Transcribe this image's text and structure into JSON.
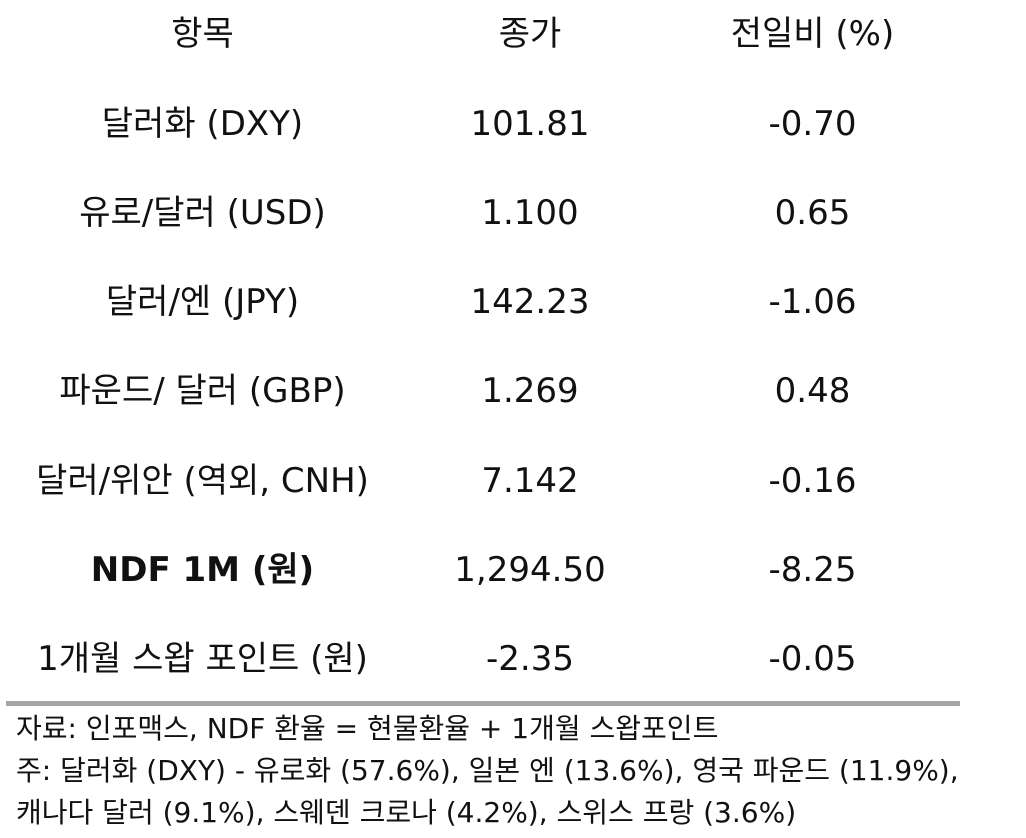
{
  "table": {
    "headers": [
      "항목",
      "종가",
      "전일비 (%)"
    ],
    "rows": [
      {
        "item": "달러화 (DXY)",
        "close": "101.81",
        "change": "-0.70",
        "bold": false
      },
      {
        "item": "유로/달러 (USD)",
        "close": "1.100",
        "change": "0.65",
        "bold": false
      },
      {
        "item": "달러/엔 (JPY)",
        "close": "142.23",
        "change": "-1.06",
        "bold": false
      },
      {
        "item": "파운드/ 달러 (GBP)",
        "close": "1.269",
        "change": "0.48",
        "bold": false
      },
      {
        "item": "달러/위안 (역외, CNH)",
        "close": "7.142",
        "change": "-0.16",
        "bold": false
      },
      {
        "item": "NDF 1M (원)",
        "close": "1,294.50",
        "change": "-8.25",
        "bold": true
      },
      {
        "item": "1개월 스왑 포인트 (원)",
        "close": "-2.35",
        "change": "-0.05",
        "bold": false
      }
    ]
  },
  "notes": {
    "source": "자료: 인포맥스, NDF 환율 = 현물환율 + 1개월 스왑포인트",
    "weights_line1": "주: 달러화 (DXY) - 유로화 (57.6%), 일본 엔 (13.6%), 영국 파운드 (11.9%),",
    "weights_line2": "캐나다 달러 (9.1%), 스웨덴 크로나 (4.2%), 스위스 프랑 (3.6%)"
  },
  "colors": {
    "text": "#111111",
    "divider": "#a6a6a6",
    "background": "#ffffff"
  }
}
